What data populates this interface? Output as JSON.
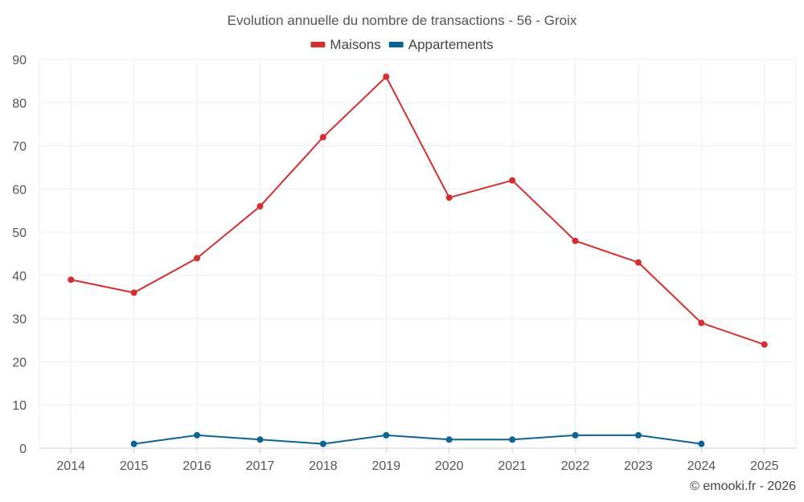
{
  "chart_data": {
    "type": "line",
    "title": "Evolution annuelle du nombre de transactions - 56 - Groix",
    "x": [
      "2014",
      "2015",
      "2016",
      "2017",
      "2018",
      "2019",
      "2020",
      "2021",
      "2022",
      "2023",
      "2024",
      "2025"
    ],
    "xlabel": "",
    "ylabel": "",
    "ylim": [
      0,
      90
    ],
    "yticks": [
      0,
      10,
      20,
      30,
      40,
      50,
      60,
      70,
      80,
      90
    ],
    "grid": true,
    "legend_position": "top-center",
    "series": [
      {
        "name": "Maisons",
        "color": "#d32f2f",
        "values": [
          39,
          36,
          44,
          56,
          72,
          86,
          58,
          62,
          48,
          43,
          29,
          24
        ]
      },
      {
        "name": "Appartements",
        "color": "#0b6396",
        "values": [
          null,
          1,
          3,
          2,
          1,
          3,
          2,
          2,
          3,
          3,
          1,
          null
        ]
      }
    ]
  },
  "credit": "© emooki.fr - 2026"
}
